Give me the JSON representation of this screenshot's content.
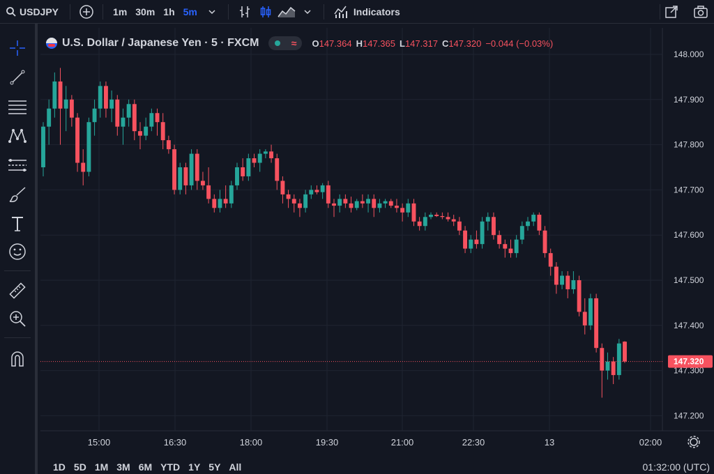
{
  "header": {
    "symbol": "USDJPY",
    "timeframes": [
      {
        "label": "1m",
        "active": false
      },
      {
        "label": "30m",
        "active": false
      },
      {
        "label": "1h",
        "active": false
      },
      {
        "label": "5m",
        "active": true
      }
    ],
    "indicators_label": "Indicators"
  },
  "legend": {
    "title": "U.S. Dollar / Japanese Yen · 5 · FXCM",
    "open_label": "O",
    "open": "147.364",
    "high_label": "H",
    "high": "147.365",
    "low_label": "L",
    "low": "147.317",
    "close_label": "C",
    "close": "147.320",
    "change": "−0.044 (−0.03%)"
  },
  "colors": {
    "background": "#131722",
    "up": "#26a69a",
    "down": "#f7525f",
    "grid": "#1f2431",
    "text": "#d1d4dc",
    "accent": "#2962ff"
  },
  "chart_data": {
    "type": "candlestick",
    "price_axis": [
      "148.000",
      "147.900",
      "147.800",
      "147.700",
      "147.600",
      "147.500",
      "147.400",
      "147.300",
      "147.200"
    ],
    "time_axis": [
      "15:00",
      "16:30",
      "18:00",
      "19:30",
      "21:00",
      "22:30",
      "13",
      "02:00"
    ],
    "current_price": "147.320",
    "candles": [
      [
        147.75,
        147.85,
        147.73,
        147.84
      ],
      [
        147.84,
        147.9,
        147.8,
        147.88
      ],
      [
        147.88,
        147.96,
        147.86,
        147.94
      ],
      [
        147.94,
        147.97,
        147.8,
        147.88
      ],
      [
        147.88,
        147.93,
        147.83,
        147.9
      ],
      [
        147.9,
        147.91,
        147.84,
        147.86
      ],
      [
        147.86,
        147.87,
        147.74,
        147.76
      ],
      [
        147.76,
        147.79,
        147.71,
        147.74
      ],
      [
        147.74,
        147.86,
        147.73,
        147.85
      ],
      [
        147.85,
        147.9,
        147.82,
        147.88
      ],
      [
        147.88,
        147.94,
        147.86,
        147.93
      ],
      [
        147.93,
        147.94,
        147.86,
        147.88
      ],
      [
        147.88,
        147.92,
        147.85,
        147.9
      ],
      [
        147.9,
        147.91,
        147.82,
        147.84
      ],
      [
        147.84,
        147.88,
        147.8,
        147.86
      ],
      [
        147.86,
        147.9,
        147.84,
        147.89
      ],
      [
        147.89,
        147.9,
        147.81,
        147.83
      ],
      [
        147.83,
        147.85,
        147.79,
        147.82
      ],
      [
        147.82,
        147.86,
        147.81,
        147.84
      ],
      [
        147.84,
        147.88,
        147.83,
        147.87
      ],
      [
        147.87,
        147.88,
        147.82,
        147.85
      ],
      [
        147.85,
        147.87,
        147.79,
        147.81
      ],
      [
        147.81,
        147.82,
        147.78,
        147.79
      ],
      [
        147.79,
        147.8,
        147.69,
        147.7
      ],
      [
        147.7,
        147.76,
        147.69,
        147.75
      ],
      [
        147.75,
        147.76,
        147.69,
        147.71
      ],
      [
        147.71,
        147.79,
        147.7,
        147.78
      ],
      [
        147.78,
        147.79,
        147.7,
        147.72
      ],
      [
        147.72,
        147.74,
        147.7,
        147.71
      ],
      [
        147.71,
        147.75,
        147.67,
        147.68
      ],
      [
        147.68,
        147.69,
        147.65,
        147.66
      ],
      [
        147.66,
        147.7,
        147.65,
        147.68
      ],
      [
        147.68,
        147.71,
        147.66,
        147.67
      ],
      [
        147.67,
        147.72,
        147.66,
        147.71
      ],
      [
        147.71,
        147.76,
        147.7,
        147.75
      ],
      [
        147.75,
        147.77,
        147.72,
        147.73
      ],
      [
        147.73,
        147.78,
        147.72,
        147.77
      ],
      [
        147.77,
        147.78,
        147.75,
        147.76
      ],
      [
        147.76,
        147.79,
        147.74,
        147.78
      ],
      [
        147.78,
        147.79,
        147.77,
        147.785
      ],
      [
        147.785,
        147.8,
        147.76,
        147.77
      ],
      [
        147.77,
        147.78,
        147.7,
        147.72
      ],
      [
        147.72,
        147.73,
        147.67,
        147.69
      ],
      [
        147.69,
        147.7,
        147.66,
        147.68
      ],
      [
        147.68,
        147.69,
        147.65,
        147.67
      ],
      [
        147.67,
        147.68,
        147.64,
        147.66
      ],
      [
        147.66,
        147.7,
        147.65,
        147.69
      ],
      [
        147.69,
        147.71,
        147.68,
        147.7
      ],
      [
        147.7,
        147.71,
        147.69,
        147.695
      ],
      [
        147.695,
        147.715,
        147.68,
        147.71
      ],
      [
        147.71,
        147.72,
        147.66,
        147.67
      ],
      [
        147.67,
        147.68,
        147.64,
        147.665
      ],
      [
        147.665,
        147.69,
        147.65,
        147.68
      ],
      [
        147.68,
        147.69,
        147.66,
        147.67
      ],
      [
        147.67,
        147.685,
        147.65,
        147.66
      ],
      [
        147.66,
        147.68,
        147.655,
        147.675
      ],
      [
        147.675,
        147.69,
        147.66,
        147.67
      ],
      [
        147.67,
        147.69,
        147.65,
        147.68
      ],
      [
        147.68,
        147.69,
        147.64,
        147.66
      ],
      [
        147.66,
        147.68,
        147.65,
        147.67
      ],
      [
        147.67,
        147.68,
        147.66,
        147.675
      ],
      [
        147.675,
        147.68,
        147.66,
        147.665
      ],
      [
        147.665,
        147.68,
        147.65,
        147.66
      ],
      [
        147.66,
        147.67,
        147.63,
        147.65
      ],
      [
        147.65,
        147.68,
        147.64,
        147.67
      ],
      [
        147.67,
        147.68,
        147.62,
        147.63
      ],
      [
        147.63,
        147.64,
        147.61,
        147.62
      ],
      [
        147.62,
        147.65,
        147.61,
        147.64
      ],
      [
        147.64,
        147.65,
        147.635,
        147.645
      ],
      [
        147.645,
        147.65,
        147.64,
        147.642
      ],
      [
        147.642,
        147.65,
        147.635,
        147.64
      ],
      [
        147.64,
        147.65,
        147.63,
        147.635
      ],
      [
        147.635,
        147.645,
        147.62,
        147.63
      ],
      [
        147.63,
        147.64,
        147.6,
        147.61
      ],
      [
        147.61,
        147.62,
        147.56,
        147.57
      ],
      [
        147.57,
        147.6,
        147.56,
        147.59
      ],
      [
        147.59,
        147.61,
        147.57,
        147.58
      ],
      [
        147.58,
        147.64,
        147.57,
        147.63
      ],
      [
        147.63,
        147.65,
        147.61,
        147.64
      ],
      [
        147.64,
        147.65,
        147.59,
        147.6
      ],
      [
        147.6,
        147.61,
        147.57,
        147.58
      ],
      [
        147.58,
        147.59,
        147.55,
        147.57
      ],
      [
        147.57,
        147.59,
        147.55,
        147.56
      ],
      [
        147.56,
        147.6,
        147.55,
        147.59
      ],
      [
        147.59,
        147.63,
        147.58,
        147.62
      ],
      [
        147.62,
        147.64,
        147.61,
        147.63
      ],
      [
        147.63,
        147.65,
        147.62,
        147.645
      ],
      [
        147.645,
        147.65,
        147.6,
        147.61
      ],
      [
        147.61,
        147.62,
        147.55,
        147.56
      ],
      [
        147.56,
        147.57,
        147.51,
        147.53
      ],
      [
        147.53,
        147.54,
        147.47,
        147.49
      ],
      [
        147.49,
        147.52,
        147.48,
        147.51
      ],
      [
        147.51,
        147.52,
        147.46,
        147.48
      ],
      [
        147.48,
        147.52,
        147.47,
        147.5
      ],
      [
        147.5,
        147.51,
        147.42,
        147.43
      ],
      [
        147.43,
        147.46,
        147.38,
        147.4
      ],
      [
        147.4,
        147.47,
        147.39,
        147.46
      ],
      [
        147.46,
        147.47,
        147.34,
        147.35
      ],
      [
        147.35,
        147.36,
        147.24,
        147.3
      ],
      [
        147.3,
        147.34,
        147.28,
        147.32
      ],
      [
        147.32,
        147.33,
        147.27,
        147.29
      ],
      [
        147.29,
        147.37,
        147.28,
        147.36
      ],
      [
        147.364,
        147.365,
        147.317,
        147.32
      ]
    ]
  },
  "bottom": {
    "ranges": [
      "1D",
      "5D",
      "1M",
      "3M",
      "6M",
      "YTD",
      "1Y",
      "5Y",
      "All"
    ],
    "clock": "01:32:00 (UTC)"
  }
}
